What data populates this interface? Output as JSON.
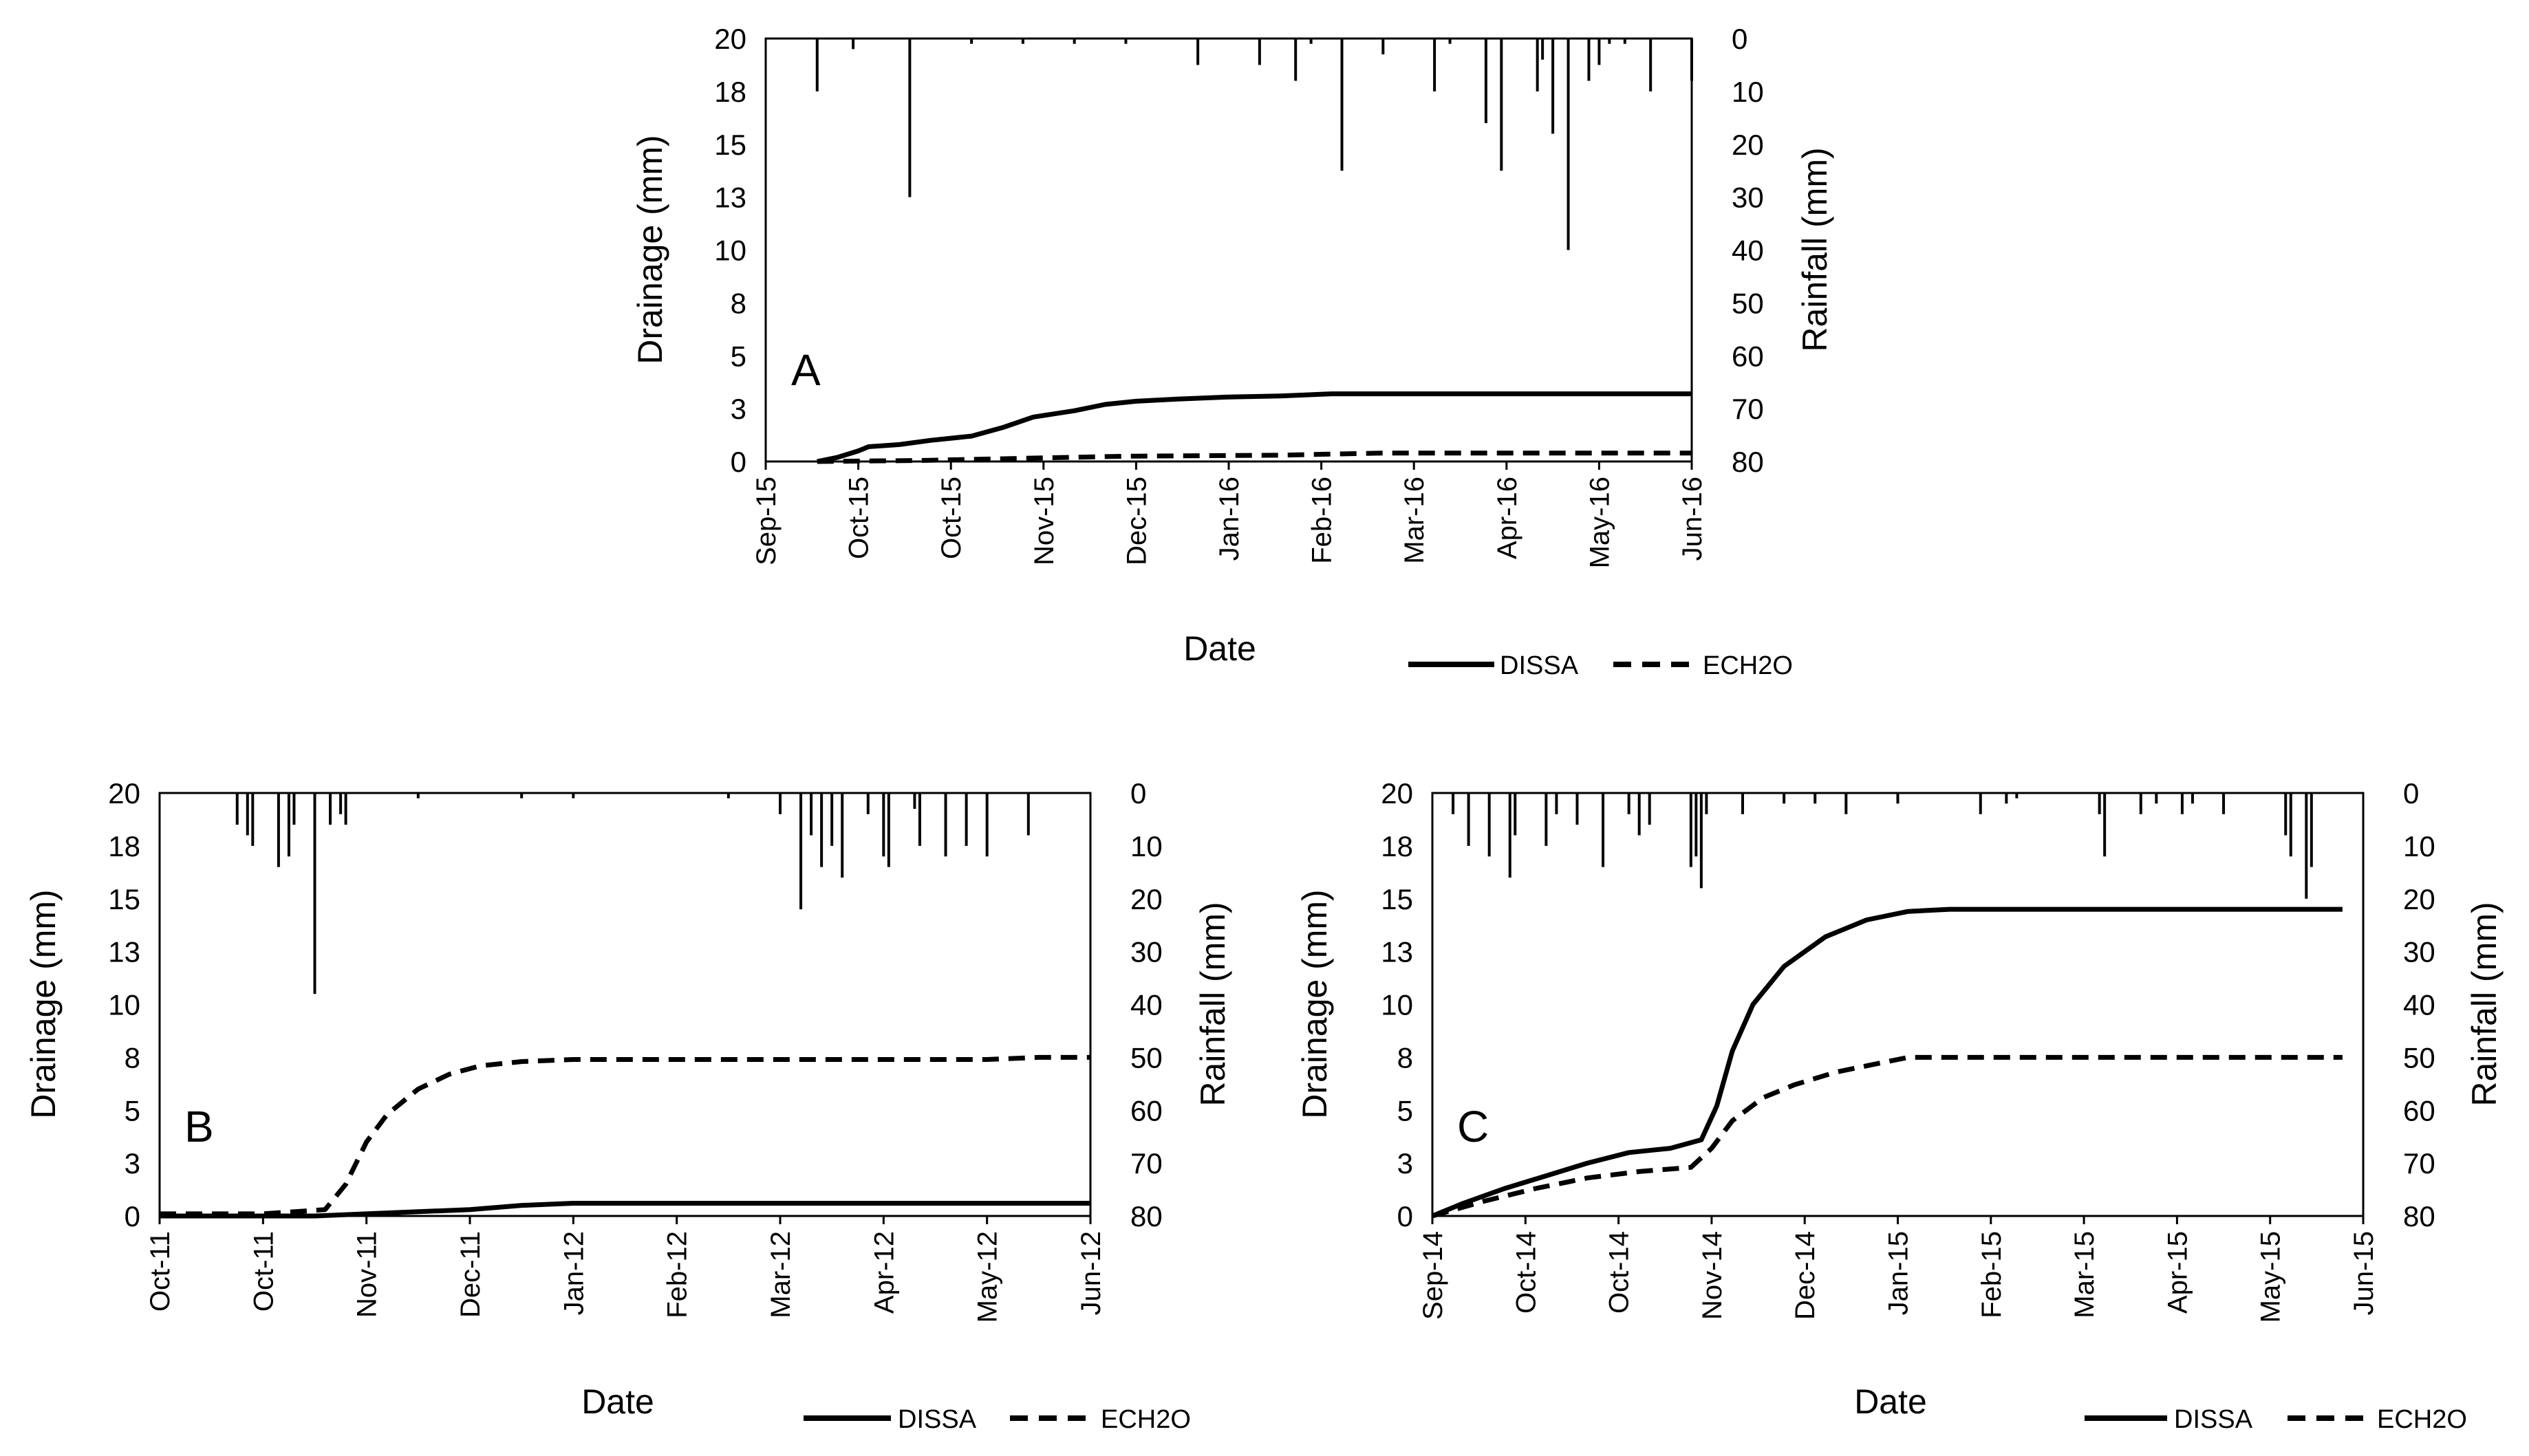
{
  "colors": {
    "ink": "#000000",
    "background": "#ffffff"
  },
  "chart_data": [
    {
      "panel_label": "A",
      "type": "line",
      "xlabel": "Date",
      "ylabel": "Drainage (mm)",
      "y2label": "Rainfall (mm)",
      "ylim": [
        0,
        20
      ],
      "y2lim": [
        0,
        80
      ],
      "y2_inverted": true,
      "xlim": [
        0,
        9
      ],
      "x_ticks": [
        "Sep-15",
        "Oct-15",
        "Oct-15",
        "Nov-15",
        "Dec-15",
        "Jan-16",
        "Feb-16",
        "Mar-16",
        "Apr-16",
        "May-16",
        "Jun-16"
      ],
      "y_ticks": [
        "0",
        "3",
        "5",
        "8",
        "10",
        "13",
        "15",
        "18",
        "20"
      ],
      "y2_ticks": [
        "80",
        "70",
        "60",
        "50",
        "40",
        "30",
        "20",
        "10",
        "0"
      ],
      "legend": [
        "DISSA",
        "ECH2O"
      ],
      "series": [
        {
          "name": "DISSA",
          "style": "solid",
          "x": [
            0.5,
            0.7,
            0.9,
            1.0,
            1.3,
            1.6,
            2.0,
            2.3,
            2.6,
            3.0,
            3.3,
            3.6,
            4.0,
            4.5,
            5.0,
            5.5,
            9.0
          ],
          "y": [
            0,
            0.2,
            0.5,
            0.7,
            0.8,
            1.0,
            1.2,
            1.6,
            2.1,
            2.4,
            2.7,
            2.85,
            2.95,
            3.05,
            3.1,
            3.2,
            3.2
          ]
        },
        {
          "name": "ECH2O",
          "style": "dashed",
          "x": [
            0.5,
            1.5,
            2.5,
            3.5,
            5.0,
            6.0,
            9.0
          ],
          "y": [
            0,
            0.05,
            0.15,
            0.25,
            0.3,
            0.4,
            0.4
          ]
        },
        {
          "name": "Rainfall",
          "type": "bar",
          "axis": "y2",
          "x": [
            0.5,
            0.85,
            1.4,
            2.0,
            2.5,
            3.0,
            3.5,
            4.2,
            4.8,
            5.15,
            5.3,
            5.6,
            6.0,
            6.5,
            6.65,
            7.0,
            7.15,
            7.5,
            7.55,
            7.65,
            7.8,
            8.0,
            8.1,
            8.2,
            8.35,
            8.6,
            9.0
          ],
          "y": [
            10,
            2,
            30,
            1,
            1,
            1,
            1,
            5,
            5,
            8,
            1,
            25,
            3,
            10,
            1,
            16,
            25,
            10,
            4,
            18,
            40,
            8,
            5,
            1,
            1,
            10,
            8
          ]
        }
      ]
    },
    {
      "panel_label": "B",
      "type": "line",
      "xlabel": "Date",
      "ylabel": "Drainage (mm)",
      "y2label": "Rainfall (mm)",
      "ylim": [
        0,
        20
      ],
      "y2lim": [
        0,
        80
      ],
      "y2_inverted": true,
      "xlim": [
        0,
        9
      ],
      "x_ticks": [
        "Oct-11",
        "Oct-11",
        "Nov-11",
        "Dec-11",
        "Jan-12",
        "Feb-12",
        "Mar-12",
        "Apr-12",
        "May-12",
        "Jun-12"
      ],
      "y_ticks": [
        "0",
        "3",
        "5",
        "8",
        "10",
        "13",
        "15",
        "18",
        "20"
      ],
      "y2_ticks": [
        "80",
        "70",
        "60",
        "50",
        "40",
        "30",
        "20",
        "10",
        "0"
      ],
      "legend": [
        "DISSA",
        "ECH2O"
      ],
      "series": [
        {
          "name": "DISSA",
          "style": "solid",
          "x": [
            0,
            1.5,
            2.0,
            2.5,
            3.0,
            3.5,
            4.0,
            9.0
          ],
          "y": [
            0,
            0,
            0.1,
            0.2,
            0.3,
            0.5,
            0.6,
            0.6
          ]
        },
        {
          "name": "ECH2O",
          "style": "dashed",
          "x": [
            0,
            1.0,
            1.6,
            1.8,
            2.0,
            2.2,
            2.5,
            2.8,
            3.1,
            3.5,
            4.0,
            5.0,
            8.0,
            8.5,
            9.0
          ],
          "y": [
            0.1,
            0.1,
            0.3,
            1.5,
            3.5,
            4.8,
            6.0,
            6.7,
            7.1,
            7.3,
            7.4,
            7.4,
            7.4,
            7.5,
            7.5
          ]
        },
        {
          "name": "Rainfall",
          "type": "bar",
          "axis": "y2",
          "x": [
            0.75,
            0.85,
            0.9,
            1.15,
            1.25,
            1.3,
            1.5,
            1.65,
            1.75,
            1.8,
            2.5,
            3.5,
            4.0,
            5.5,
            6.0,
            6.2,
            6.3,
            6.4,
            6.5,
            6.6,
            6.85,
            7.0,
            7.05,
            7.3,
            7.35,
            7.6,
            7.8,
            8.0,
            8.4
          ],
          "y": [
            6,
            8,
            10,
            14,
            12,
            6,
            38,
            6,
            4,
            6,
            1,
            1,
            1,
            1,
            4,
            22,
            8,
            14,
            10,
            16,
            4,
            12,
            14,
            3,
            10,
            12,
            10,
            12,
            8
          ]
        }
      ]
    },
    {
      "panel_label": "C",
      "type": "line",
      "xlabel": "Date",
      "ylabel": "Drainage (mm)",
      "y2label": "Rainfall (mm)",
      "ylim": [
        0,
        20
      ],
      "y2lim": [
        0,
        80
      ],
      "y2_inverted": true,
      "xlim": [
        0,
        9
      ],
      "x_ticks": [
        "Sep-14",
        "Oct-14",
        "Oct-14",
        "Nov-14",
        "Dec-14",
        "Jan-15",
        "Feb-15",
        "Mar-15",
        "Apr-15",
        "May-15",
        "Jun-15"
      ],
      "y_ticks": [
        "0",
        "3",
        "5",
        "8",
        "10",
        "13",
        "15",
        "18",
        "20"
      ],
      "y2_ticks": [
        "80",
        "70",
        "60",
        "50",
        "40",
        "30",
        "20",
        "10",
        "0"
      ],
      "legend": [
        "DISSA",
        "ECH2O"
      ],
      "series": [
        {
          "name": "DISSA",
          "style": "solid",
          "x": [
            0,
            0.3,
            0.7,
            1.1,
            1.5,
            1.9,
            2.3,
            2.6,
            2.75,
            2.9,
            3.1,
            3.4,
            3.8,
            4.2,
            4.6,
            5.0,
            8.8
          ],
          "y": [
            0,
            0.6,
            1.3,
            1.9,
            2.5,
            3.0,
            3.2,
            3.6,
            5.2,
            7.8,
            10.0,
            11.8,
            13.2,
            14.0,
            14.4,
            14.5,
            14.5
          ]
        },
        {
          "name": "ECH2O",
          "style": "dashed",
          "x": [
            0,
            0.5,
            1.0,
            1.5,
            2.0,
            2.5,
            2.7,
            2.9,
            3.2,
            3.5,
            3.9,
            4.3,
            4.6,
            4.8,
            8.8
          ],
          "y": [
            0,
            0.7,
            1.3,
            1.8,
            2.1,
            2.3,
            3.2,
            4.5,
            5.6,
            6.2,
            6.8,
            7.2,
            7.5,
            7.5,
            7.5
          ]
        },
        {
          "name": "Rainfall",
          "type": "bar",
          "axis": "y2",
          "x": [
            0.2,
            0.35,
            0.55,
            0.75,
            0.8,
            1.1,
            1.2,
            1.4,
            1.65,
            1.9,
            2.0,
            2.1,
            2.5,
            2.55,
            2.6,
            2.65,
            3.0,
            3.4,
            3.7,
            4.0,
            4.5,
            5.3,
            5.55,
            5.65,
            6.45,
            6.5,
            6.85,
            7.0,
            7.25,
            7.35,
            7.65,
            8.25,
            8.3,
            8.45,
            8.5
          ],
          "y": [
            4,
            10,
            12,
            16,
            8,
            10,
            4,
            6,
            14,
            4,
            8,
            6,
            14,
            12,
            18,
            4,
            4,
            2,
            2,
            4,
            2,
            4,
            2,
            1,
            4,
            12,
            4,
            2,
            4,
            2,
            4,
            8,
            12,
            20,
            14
          ]
        }
      ]
    }
  ]
}
